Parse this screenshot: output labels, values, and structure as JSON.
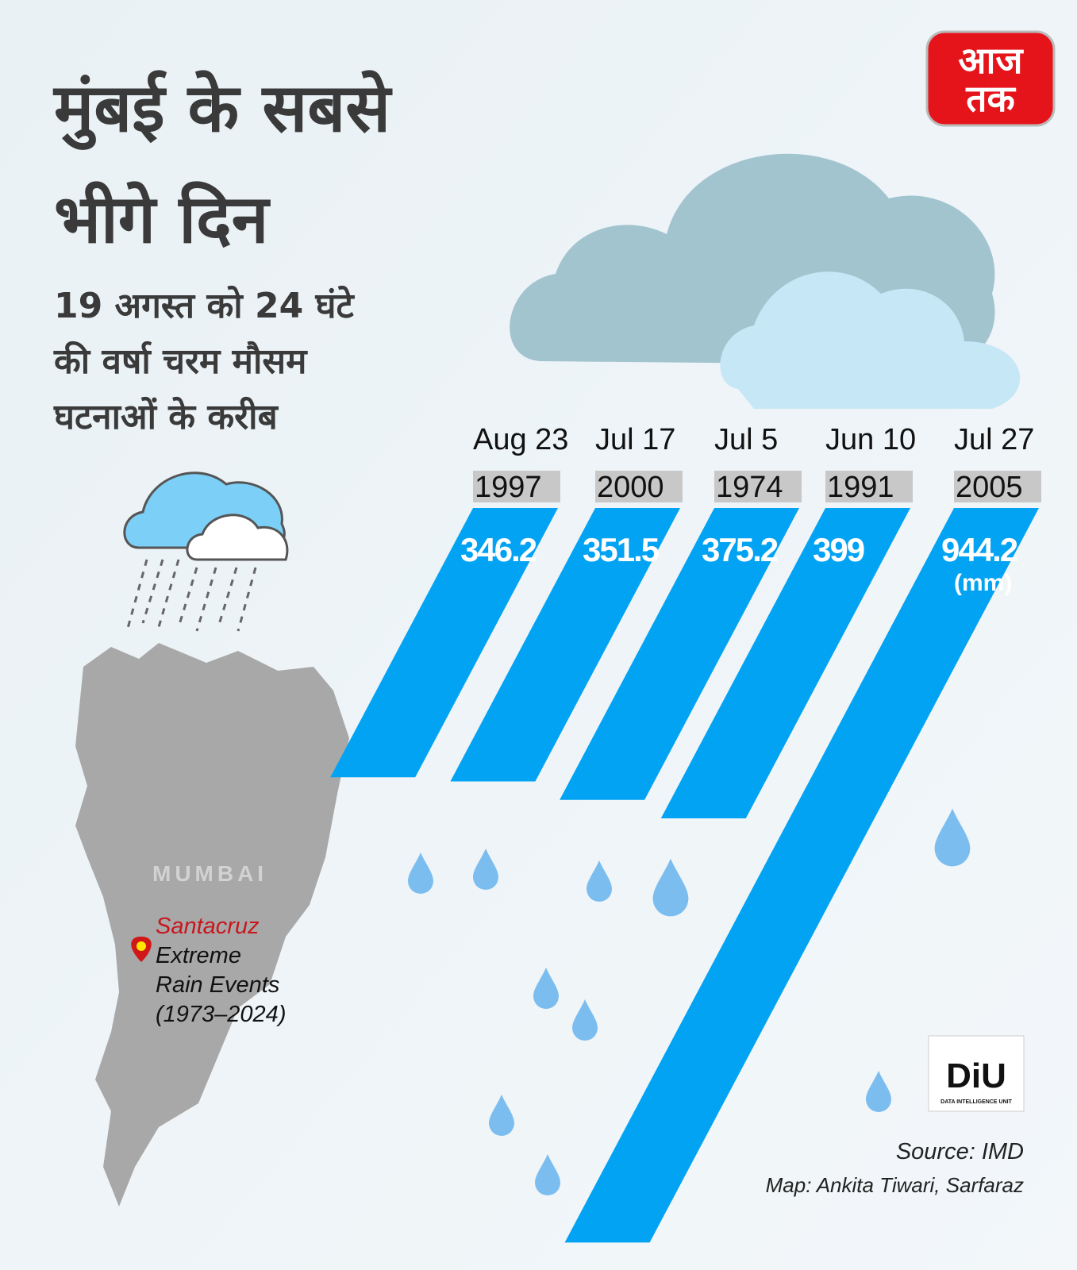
{
  "logo": {
    "line1": "आज",
    "line2": "तक"
  },
  "title": [
    "मुंबई के सबसे",
    "भीगे दिन"
  ],
  "subtitle": [
    "19 अगस्त को 24 घंटे",
    "की वर्षा चरम मौसम",
    "घटनाओं के करीब"
  ],
  "chart_data": {
    "type": "bar",
    "categories": [
      "Aug 23",
      "Jul 17",
      "Jul 5",
      "Jun 10",
      "Jul 27"
    ],
    "years": [
      "1997",
      "2000",
      "1974",
      "1991",
      "2005"
    ],
    "values": [
      346.2,
      351.5,
      375.2,
      399,
      944.2
    ],
    "unit": "(mm)",
    "color": "#03a3f3"
  },
  "map": {
    "region": "MUMBAI",
    "place": "Santacruz",
    "caption": [
      "Extreme",
      "Rain Events",
      "(1973–2024)"
    ]
  },
  "credits": {
    "unit_logo": "DiU",
    "unit_name": "DATA INTELLIGENCE UNIT",
    "source": "Source: IMD",
    "map": "Map: Ankita Tiwari, Sarfaraz"
  }
}
